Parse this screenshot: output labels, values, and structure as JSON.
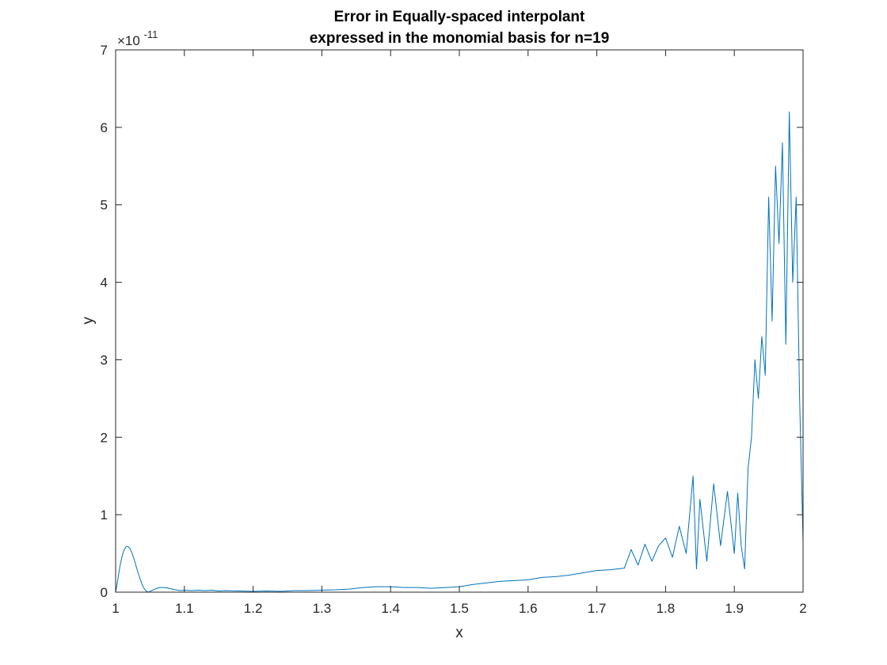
{
  "chart_data": {
    "type": "line",
    "title_line1": "Error in Equally-spaced interpolant",
    "title_line2": "expressed in the monomial basis for n=19",
    "xlabel": "x",
    "ylabel": "y",
    "xlim": [
      1,
      2
    ],
    "ylim": [
      0,
      7e-11
    ],
    "x_ticks": [
      "1",
      "1.1",
      "1.2",
      "1.3",
      "1.4",
      "1.5",
      "1.6",
      "1.7",
      "1.8",
      "1.9",
      "2"
    ],
    "y_ticks": [
      "0",
      "1",
      "2",
      "3",
      "4",
      "5",
      "6",
      "7"
    ],
    "y_exponent_base": "×10",
    "y_exponent_power": "-11",
    "grid": false,
    "series": [
      {
        "color": "#0072bd",
        "x": [
          1.0,
          1.003,
          1.006,
          1.009,
          1.012,
          1.015,
          1.018,
          1.021,
          1.024,
          1.027,
          1.03,
          1.033,
          1.036,
          1.039,
          1.042,
          1.045,
          1.048,
          1.05,
          1.055,
          1.06,
          1.065,
          1.07,
          1.075,
          1.08,
          1.085,
          1.09,
          1.095,
          1.1,
          1.11,
          1.12,
          1.13,
          1.14,
          1.15,
          1.16,
          1.18,
          1.2,
          1.22,
          1.24,
          1.26,
          1.28,
          1.3,
          1.32,
          1.34,
          1.36,
          1.38,
          1.4,
          1.42,
          1.44,
          1.46,
          1.48,
          1.5,
          1.52,
          1.54,
          1.56,
          1.58,
          1.6,
          1.62,
          1.64,
          1.66,
          1.68,
          1.7,
          1.72,
          1.74,
          1.75,
          1.76,
          1.77,
          1.78,
          1.79,
          1.8,
          1.81,
          1.82,
          1.83,
          1.84,
          1.845,
          1.85,
          1.86,
          1.87,
          1.88,
          1.89,
          1.9,
          1.905,
          1.91,
          1.915,
          1.92,
          1.925,
          1.93,
          1.935,
          1.94,
          1.945,
          1.95,
          1.955,
          1.96,
          1.965,
          1.97,
          1.975,
          1.98,
          1.985,
          1.99,
          1.995,
          2.0
        ],
        "y": [
          0.0,
          1.5e-12,
          3.2e-12,
          4.5e-12,
          5.4e-12,
          5.85e-12,
          5.9e-12,
          5.6e-12,
          5e-12,
          4.2e-12,
          3.3e-12,
          2.4e-12,
          1.6e-12,
          9e-13,
          4e-13,
          1e-13,
          0.0,
          1e-13,
          3e-13,
          5e-13,
          6e-13,
          6e-13,
          5.5e-13,
          4.5e-13,
          3.5e-13,
          2.5e-13,
          2e-13,
          2.5e-13,
          2e-13,
          2.5e-13,
          2e-13,
          2.5e-13,
          1.5e-13,
          2e-13,
          1.5e-13,
          1e-13,
          1.5e-13,
          1e-13,
          2e-13,
          2e-13,
          2.5e-13,
          3e-13,
          4e-13,
          6e-13,
          7e-13,
          7e-13,
          6e-13,
          6e-13,
          5e-13,
          6e-13,
          7e-13,
          1e-12,
          1.2e-12,
          1.4e-12,
          1.5e-12,
          1.6e-12,
          1.9e-12,
          2e-12,
          2.2e-12,
          2.5e-12,
          2.8e-12,
          2.9e-12,
          3.1e-12,
          5.5e-12,
          3.5e-12,
          6.2e-12,
          4e-12,
          6e-12,
          7e-12,
          4.5e-12,
          8.5e-12,
          5e-12,
          1.5e-11,
          3e-12,
          1.2e-11,
          4e-12,
          1.4e-11,
          6e-12,
          1.3e-11,
          5e-12,
          1.28e-11,
          6e-12,
          3e-12,
          1.6e-11,
          2e-11,
          3e-11,
          2.5e-11,
          3.3e-11,
          2.8e-11,
          5.1e-11,
          3.5e-11,
          5.5e-11,
          4.5e-11,
          5.8e-11,
          3.2e-11,
          6.2e-11,
          4e-11,
          5.1e-11,
          2.5e-11,
          6.5e-12
        ]
      }
    ]
  }
}
